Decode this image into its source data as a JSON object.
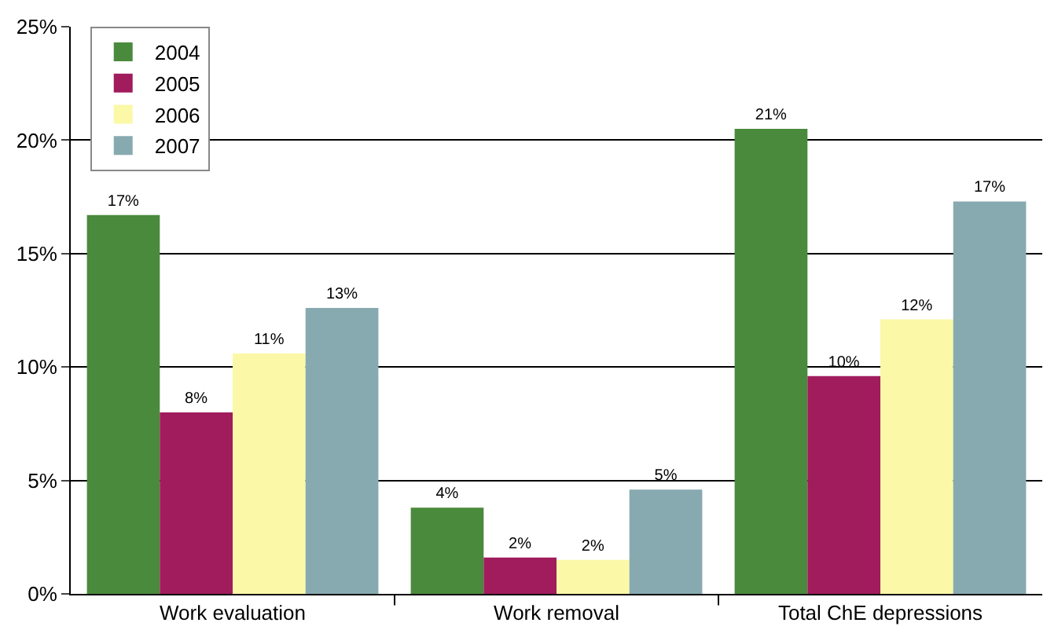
{
  "chart_data": {
    "type": "bar",
    "categories": [
      "Work evaluation",
      "Work removal",
      "Total ChE depressions"
    ],
    "series": [
      {
        "name": "2004",
        "color": "#4a8a3c",
        "values": [
          16.7,
          3.8,
          20.5
        ],
        "value_labels": [
          "17%",
          "4%",
          "21%"
        ]
      },
      {
        "name": "2005",
        "color": "#a01c5c",
        "values": [
          8.0,
          1.6,
          9.6
        ],
        "value_labels": [
          "8%",
          "2%",
          "10%"
        ]
      },
      {
        "name": "2006",
        "color": "#fbf8a8",
        "values": [
          10.6,
          1.5,
          12.1
        ],
        "value_labels": [
          "11%",
          "2%",
          "12%"
        ]
      },
      {
        "name": "2007",
        "color": "#87aab0",
        "values": [
          12.6,
          4.6,
          17.3
        ],
        "value_labels": [
          "13%",
          "5%",
          "17%"
        ]
      }
    ],
    "ylim": [
      0,
      25
    ],
    "yticks": [
      {
        "value": 0,
        "label": "0%"
      },
      {
        "value": 5,
        "label": "5%"
      },
      {
        "value": 10,
        "label": "10%"
      },
      {
        "value": 15,
        "label": "15%"
      },
      {
        "value": 20,
        "label": "20%"
      },
      {
        "value": 25,
        "label": "25%"
      }
    ],
    "grid": "y",
    "legend": "top left"
  }
}
